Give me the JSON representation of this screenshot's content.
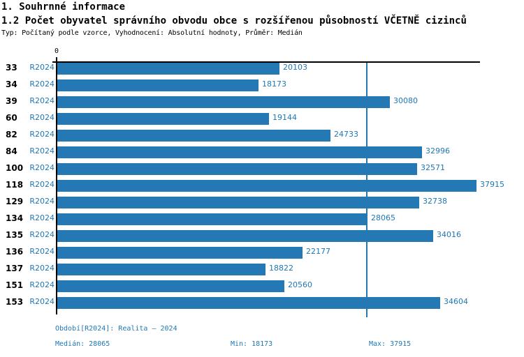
{
  "colors": {
    "bar": "#2478b4",
    "accent_text": "#1f77b4",
    "axis": "#000000"
  },
  "header": {
    "title1": "1. Souhrnné informace",
    "title2": "1.2 Počet obyvatel správního obvodu obce s rozšířenou působností VČETNĚ cizinců",
    "subtitle": "Typ: Počítaný podle vzorce, Vyhodnocení: Absolutní hodnoty, Průměr: Medián"
  },
  "chart_data": {
    "type": "bar",
    "orientation": "horizontal",
    "title": "1.2 Počet obyvatel správního obvodu obce s rozšířenou působností VČETNĚ cizinců",
    "categories": [
      "33",
      "34",
      "39",
      "60",
      "82",
      "84",
      "100",
      "118",
      "129",
      "134",
      "135",
      "136",
      "137",
      "151",
      "153"
    ],
    "series": [
      {
        "name": "R2024",
        "values": [
          20103,
          18173,
          30080,
          19144,
          24733,
          32996,
          32571,
          37915,
          32738,
          28065,
          34016,
          22177,
          18822,
          20560,
          34604
        ]
      }
    ],
    "xlabel": "",
    "ylabel": "",
    "xlim": [
      0,
      38300
    ],
    "x_ticks": [
      "0"
    ],
    "grid": false,
    "legend_position": "none",
    "reference_line": {
      "label": "Medián",
      "value": 28065,
      "orientation": "vertical"
    },
    "stats": {
      "median": 28065,
      "min": 18173,
      "max": 37915
    }
  },
  "footer": {
    "period": "Období[R2024]: Realita – 2024",
    "median_label": "Medián: 28065",
    "min_label": "Min: 18173",
    "max_label": "Max: 37915"
  },
  "axis": {
    "zero_tick": "0"
  }
}
